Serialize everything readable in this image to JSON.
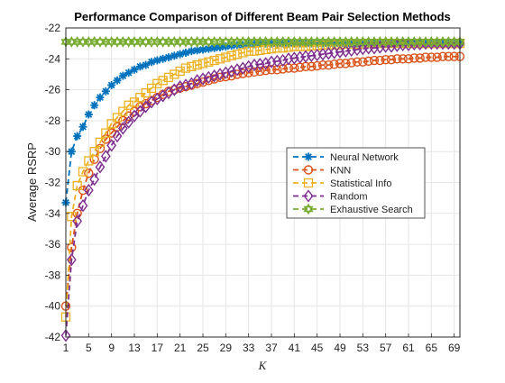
{
  "chart_data": {
    "type": "line",
    "title": "Performance Comparison of Different Beam Pair Selection Methods",
    "xlabel": "K",
    "ylabel": "Average RSRP",
    "xlim": [
      1,
      70
    ],
    "ylim": [
      -42,
      -22
    ],
    "xticks": [
      1,
      5,
      9,
      13,
      17,
      21,
      25,
      29,
      33,
      37,
      41,
      45,
      49,
      53,
      57,
      61,
      65,
      69
    ],
    "yticks": [
      -42,
      -40,
      -38,
      -36,
      -34,
      -32,
      -30,
      -28,
      -26,
      -24,
      -22
    ],
    "grid": true,
    "legend_position": "center-right",
    "x": [
      1,
      2,
      3,
      4,
      5,
      6,
      7,
      8,
      9,
      10,
      11,
      12,
      13,
      14,
      15,
      16,
      17,
      18,
      19,
      20,
      21,
      22,
      23,
      24,
      25,
      26,
      27,
      28,
      29,
      30,
      31,
      32,
      33,
      34,
      35,
      36,
      37,
      38,
      39,
      40,
      41,
      42,
      43,
      44,
      45,
      46,
      47,
      48,
      49,
      50,
      51,
      52,
      53,
      54,
      55,
      56,
      57,
      58,
      59,
      60,
      61,
      62,
      63,
      64,
      65,
      66,
      67,
      68,
      69,
      70
    ],
    "series": [
      {
        "name": "Neural Network",
        "color": "#0072BD",
        "marker": "asterisk",
        "values": [
          -33.3,
          -30.0,
          -29.0,
          -28.4,
          -27.6,
          -27.0,
          -26.5,
          -26.1,
          -25.7,
          -25.4,
          -25.1,
          -24.9,
          -24.7,
          -24.5,
          -24.4,
          -24.2,
          -24.1,
          -24.0,
          -23.9,
          -23.8,
          -23.7,
          -23.6,
          -23.5,
          -23.45,
          -23.4,
          -23.35,
          -23.3,
          -23.25,
          -23.2,
          -23.15,
          -23.1,
          -23.1,
          -23.05,
          -23.05,
          -23.0,
          -23.0,
          -23.0,
          -23.0,
          -23.0,
          -23.0,
          -23.0,
          -23.0,
          -23.0,
          -23.0,
          -23.0,
          -23.0,
          -23.0,
          -23.0,
          -23.0,
          -23.0,
          -23.0,
          -23.0,
          -23.0,
          -23.0,
          -23.0,
          -23.0,
          -23.0,
          -23.0,
          -23.0,
          -23.0,
          -23.0,
          -23.0,
          -23.0,
          -23.0,
          -23.0,
          -23.0,
          -23.0,
          -23.0,
          -23.0,
          -23.0
        ]
      },
      {
        "name": "KNN",
        "color": "#D95319",
        "marker": "circle",
        "values": [
          -40.0,
          -36.2,
          -34.0,
          -32.5,
          -31.4,
          -30.5,
          -29.8,
          -29.2,
          -28.8,
          -28.4,
          -28.0,
          -27.7,
          -27.4,
          -27.1,
          -26.9,
          -26.7,
          -26.5,
          -26.3,
          -26.1,
          -26.0,
          -25.9,
          -25.8,
          -25.7,
          -25.6,
          -25.5,
          -25.4,
          -25.3,
          -25.2,
          -25.15,
          -25.1,
          -25.0,
          -24.95,
          -24.9,
          -24.85,
          -24.8,
          -24.75,
          -24.7,
          -24.7,
          -24.65,
          -24.6,
          -24.6,
          -24.55,
          -24.5,
          -24.5,
          -24.45,
          -24.4,
          -24.4,
          -24.35,
          -24.3,
          -24.3,
          -24.25,
          -24.2,
          -24.2,
          -24.15,
          -24.1,
          -24.1,
          -24.05,
          -24.05,
          -24.0,
          -24.0,
          -24.0,
          -23.95,
          -23.95,
          -23.9,
          -23.9,
          -23.9,
          -23.85,
          -23.85,
          -23.85,
          -23.85
        ]
      },
      {
        "name": "Statistical Info",
        "color": "#EDB120",
        "marker": "square",
        "values": [
          -40.7,
          -34.2,
          -32.2,
          -31.3,
          -30.6,
          -30.0,
          -29.4,
          -28.8,
          -28.2,
          -27.8,
          -27.4,
          -27.0,
          -26.8,
          -26.5,
          -26.2,
          -25.9,
          -25.6,
          -25.4,
          -25.2,
          -25.0,
          -24.8,
          -24.6,
          -24.5,
          -24.4,
          -24.3,
          -24.2,
          -24.1,
          -24.0,
          -23.9,
          -23.8,
          -23.7,
          -23.6,
          -23.5,
          -23.5,
          -23.45,
          -23.4,
          -23.35,
          -23.3,
          -23.3,
          -23.25,
          -23.2,
          -23.2,
          -23.2,
          -23.15,
          -23.15,
          -23.1,
          -23.1,
          -23.1,
          -23.1,
          -23.05,
          -23.05,
          -23.05,
          -23.05,
          -23.0,
          -23.0,
          -23.0,
          -23.0,
          -23.0,
          -23.0,
          -23.0,
          -23.0,
          -23.0,
          -23.0,
          -23.0,
          -23.0,
          -23.0,
          -23.0,
          -23.0,
          -23.0,
          -23.0
        ]
      },
      {
        "name": "Random",
        "color": "#7E2F8E",
        "marker": "diamond",
        "values": [
          -41.9,
          -37.0,
          -34.5,
          -33.5,
          -32.5,
          -31.8,
          -31.0,
          -30.3,
          -29.6,
          -29.0,
          -28.5,
          -28.1,
          -27.7,
          -27.4,
          -27.1,
          -26.8,
          -26.6,
          -26.4,
          -26.2,
          -26.0,
          -25.8,
          -25.7,
          -25.6,
          -25.4,
          -25.3,
          -25.2,
          -25.1,
          -25.0,
          -24.9,
          -24.8,
          -24.7,
          -24.6,
          -24.5,
          -24.4,
          -24.35,
          -24.3,
          -24.2,
          -24.15,
          -24.1,
          -24.0,
          -23.95,
          -23.9,
          -23.85,
          -23.8,
          -23.75,
          -23.7,
          -23.65,
          -23.6,
          -23.55,
          -23.5,
          -23.45,
          -23.4,
          -23.35,
          -23.3,
          -23.3,
          -23.25,
          -23.2,
          -23.2,
          -23.15,
          -23.1,
          -23.1,
          -23.05,
          -23.05,
          -23.0,
          -23.0,
          -23.0,
          -23.0,
          -23.0,
          -23.0,
          -23.0
        ]
      },
      {
        "name": "Exhaustive Search",
        "color": "#77AC30",
        "marker": "hexagram",
        "values": [
          -22.9,
          -22.9,
          -22.9,
          -22.9,
          -22.9,
          -22.9,
          -22.9,
          -22.9,
          -22.9,
          -22.9,
          -22.9,
          -22.9,
          -22.9,
          -22.9,
          -22.9,
          -22.9,
          -22.9,
          -22.9,
          -22.9,
          -22.9,
          -22.9,
          -22.9,
          -22.9,
          -22.9,
          -22.9,
          -22.9,
          -22.9,
          -22.9,
          -22.9,
          -22.9,
          -22.9,
          -22.9,
          -22.9,
          -22.9,
          -22.9,
          -22.9,
          -22.9,
          -22.9,
          -22.9,
          -22.9,
          -22.9,
          -22.9,
          -22.9,
          -22.9,
          -22.9,
          -22.9,
          -22.9,
          -22.9,
          -22.9,
          -22.9,
          -22.9,
          -22.9,
          -22.9,
          -22.9,
          -22.9,
          -22.9,
          -22.9,
          -22.9,
          -22.9,
          -22.9,
          -22.9,
          -22.9,
          -22.9,
          -22.9,
          -22.9,
          -22.9,
          -22.9,
          -22.9,
          -22.9,
          -22.9
        ]
      }
    ]
  }
}
